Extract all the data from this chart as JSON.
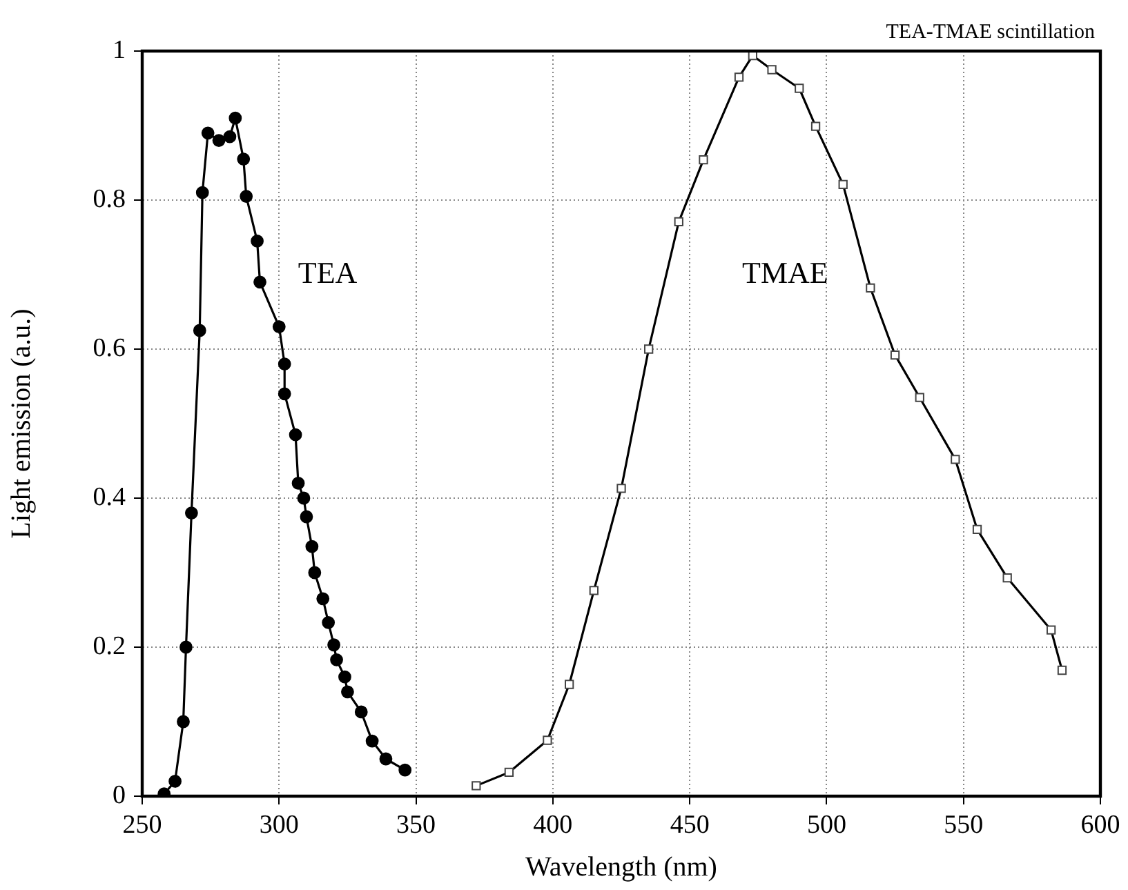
{
  "chart_data": {
    "type": "line",
    "title": "TEA-TMAE scintillation",
    "xlabel": "Wavelength (nm)",
    "ylabel": "Light emission (a.u.)",
    "xlim": [
      250,
      600
    ],
    "xticks": [
      250,
      300,
      350,
      400,
      450,
      500,
      550,
      600
    ],
    "ylim": [
      0,
      1
    ],
    "yticks": [
      0,
      0.2,
      0.4,
      0.6,
      0.8,
      1
    ],
    "grid": true,
    "line_style": "solid",
    "series": [
      {
        "name": "TEA",
        "color": "#000000",
        "marker": "circle",
        "x": [
          258,
          262,
          265,
          266,
          268,
          271,
          272,
          274,
          278,
          282,
          284,
          287,
          288,
          292,
          293,
          300,
          302,
          302,
          306,
          307,
          309,
          310,
          312,
          313,
          316,
          318,
          320,
          321,
          324,
          325,
          330,
          334,
          339,
          346
        ],
        "values": [
          0.003,
          0.02,
          0.1,
          0.2,
          0.38,
          0.625,
          0.81,
          0.89,
          0.88,
          0.885,
          0.91,
          0.855,
          0.805,
          0.745,
          0.69,
          0.63,
          0.58,
          0.54,
          0.485,
          0.42,
          0.4,
          0.375,
          0.335,
          0.3,
          0.265,
          0.233,
          0.203,
          0.183,
          0.16,
          0.14,
          0.113,
          0.074,
          0.05,
          0.035
        ]
      },
      {
        "name": "TMAE",
        "color": "#000000",
        "marker": "square",
        "x": [
          372,
          384,
          398,
          406,
          415,
          425,
          435,
          446,
          455,
          468,
          473,
          480,
          490,
          496,
          506,
          516,
          525,
          534,
          547,
          555,
          566,
          582,
          586
        ],
        "values": [
          0.014,
          0.032,
          0.075,
          0.15,
          0.276,
          0.413,
          0.6,
          0.771,
          0.854,
          0.965,
          0.994,
          0.975,
          0.95,
          0.899,
          0.821,
          0.682,
          0.592,
          0.535,
          0.452,
          0.358,
          0.293,
          0.223,
          0.169
        ]
      }
    ]
  }
}
